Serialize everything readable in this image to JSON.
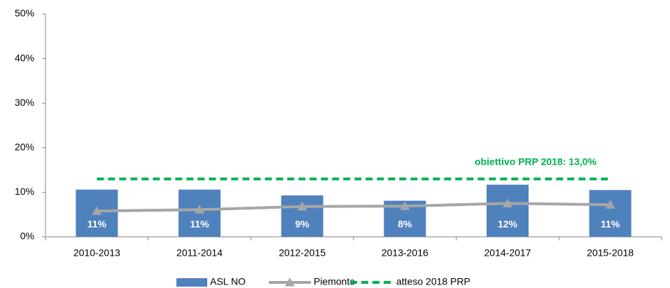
{
  "chart_data": {
    "type": "bar",
    "categories": [
      "2010-2013",
      "2011-2014",
      "2012-2015",
      "2013-2016",
      "2014-2017",
      "2015-2018"
    ],
    "series": [
      {
        "name": "ASL NO",
        "type": "bar",
        "color": "#4f81bd",
        "values": [
          10.6,
          10.6,
          9.3,
          8.1,
          11.7,
          10.5
        ],
        "value_labels": [
          "11%",
          "11%",
          "9%",
          "8%",
          "12%",
          "11%"
        ]
      },
      {
        "name": "Piemonte",
        "type": "line",
        "color": "#a6a6a6",
        "values": [
          5.8,
          6.1,
          6.8,
          6.9,
          7.5,
          7.2
        ]
      },
      {
        "name": "atteso 2018 PRP",
        "type": "dashed",
        "color": "#00b050",
        "values": [
          13.0,
          13.0,
          13.0,
          13.0,
          13.0,
          13.0
        ]
      }
    ],
    "annotation": "obiettivo PRP 2018: 13,0%",
    "ylim": [
      0,
      50
    ],
    "yticks": [
      {
        "value": 0,
        "label": "0%"
      },
      {
        "value": 10,
        "label": "10%"
      },
      {
        "value": 20,
        "label": "20%"
      },
      {
        "value": 30,
        "label": "30%"
      },
      {
        "value": 40,
        "label": "40%"
      },
      {
        "value": 50,
        "label": "50%"
      }
    ],
    "legend": "bottom"
  }
}
